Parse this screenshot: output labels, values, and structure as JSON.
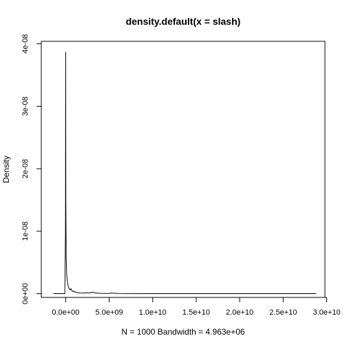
{
  "chart_data": {
    "type": "line",
    "title": "density.default(x = slash)",
    "xlabel": "N = 1000   Bandwidth = 4.963e+06",
    "ylabel": "Density",
    "xlim": [
      -2800000000,
      29800000000
    ],
    "ylim": [
      -1600000000000,
      4.04e-08
    ],
    "x_ticks": [
      0,
      5000000000,
      10000000000,
      15000000000,
      20000000000,
      25000000000,
      30000000000
    ],
    "x_tick_labels": [
      "0.0e+00",
      "5.0e+09",
      "1.0e+10",
      "1.5e+10",
      "2.0e+10",
      "2.5e+10",
      "3.0e+10"
    ],
    "y_ticks": [
      0,
      1e-08,
      2e-08,
      3e-08,
      4e-08
    ],
    "y_tick_labels": [
      "0e+00",
      "1e-08",
      "2e-08",
      "3e-08",
      "4e-08"
    ],
    "series": [
      {
        "x": [
          -1400000000,
          -100000000,
          -20000000,
          0,
          20000000,
          60000000,
          120000000,
          200000000,
          300000000,
          400000000,
          500000000,
          600000000,
          700000000,
          800000000,
          900000000,
          1000000000,
          1100000000,
          1200000000,
          1400000000,
          1600000000,
          2000000000,
          2500000000,
          2800000000,
          3000000000,
          3500000000,
          4000000000,
          5000000000,
          5200000000,
          6000000000,
          8000000000,
          10000000000,
          15000000000,
          20000000000,
          25000000000,
          28800000000
        ],
        "y": [
          0,
          0,
          1e-08,
          3.87e-08,
          1.5e-08,
          6e-09,
          3e-09,
          1.8e-09,
          1.2e-09,
          8e-10,
          6e-10,
          8e-10,
          5e-10,
          3.5e-10,
          4.5e-10,
          2.5e-10,
          3e-10,
          2e-10,
          1.5e-10,
          1.2e-10,
          1e-10,
          1.5e-10,
          1e-10,
          2.5e-10,
          1e-10,
          5e-11,
          4e-11,
          1e-10,
          3e-11,
          2e-11,
          1e-11,
          0,
          0,
          0,
          0
        ]
      }
    ]
  }
}
